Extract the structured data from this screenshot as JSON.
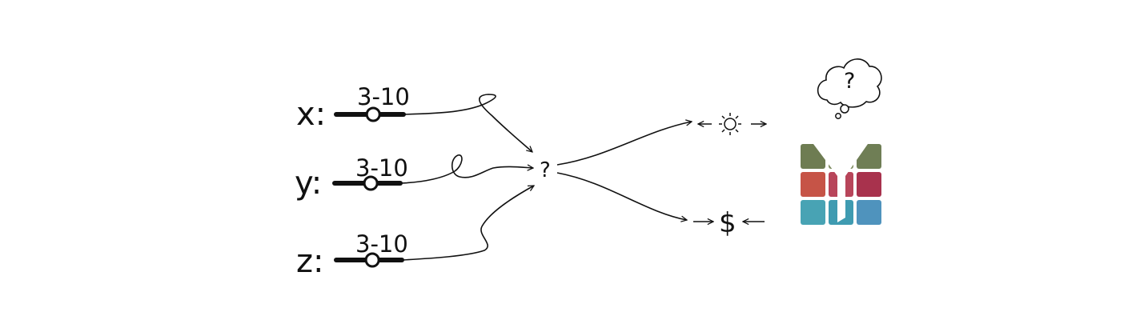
{
  "parameters": [
    {
      "name": "x:",
      "range": "3-10",
      "slider_value": 0.55
    },
    {
      "name": "y:",
      "range": "3-10",
      "slider_value": 0.55
    },
    {
      "name": "z:",
      "range": "3-10",
      "slider_value": 0.55
    }
  ],
  "center_label": "?",
  "outputs": {
    "thought_bubble_text": "?",
    "cost_symbol": "$"
  },
  "icons": [
    "sun-icon",
    "dollar-icon",
    "thought-cloud-icon",
    "filter-funnel-icon",
    "color-grid-icon"
  ],
  "colors": {
    "ink": "#111111",
    "grid": [
      "#6e7c52",
      "#7c8a5e",
      "#6f7e55",
      "#c65447",
      "#b8455a",
      "#a8324d",
      "#48a3b4",
      "#3f9bb1",
      "#4f93bd"
    ]
  }
}
